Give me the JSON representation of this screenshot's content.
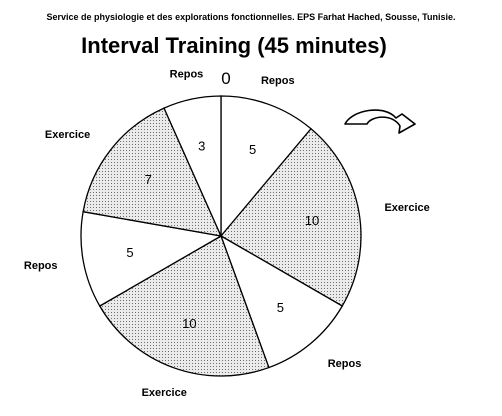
{
  "header_note": "Service de physiologie et des explorations fonctionnelles. EPS Farhat Hached, Sousse, Tunisie.",
  "colors": {
    "rest_fill": "#ffffff",
    "exercise_fill": "#ebebeb",
    "exercise_dots": "#6e6e6e",
    "outline": "#000000"
  },
  "icons": {
    "direction": "clockwise-arrow-icon"
  },
  "chart_data": {
    "type": "pie",
    "title": "Interval Training (45 minutes)",
    "start_label": "0",
    "direction": "clockwise",
    "total": 45,
    "slices": [
      {
        "label": "Repos",
        "value": 5,
        "pattern": "plain"
      },
      {
        "label": "Exercice",
        "value": 10,
        "pattern": "dotted"
      },
      {
        "label": "Repos",
        "value": 5,
        "pattern": "plain"
      },
      {
        "label": "Exercice",
        "value": 10,
        "pattern": "dotted"
      },
      {
        "label": "Repos",
        "value": 5,
        "pattern": "plain"
      },
      {
        "label": "Exercice",
        "value": 7,
        "pattern": "dotted"
      },
      {
        "label": "Repos",
        "value": 3,
        "pattern": "plain"
      }
    ]
  }
}
